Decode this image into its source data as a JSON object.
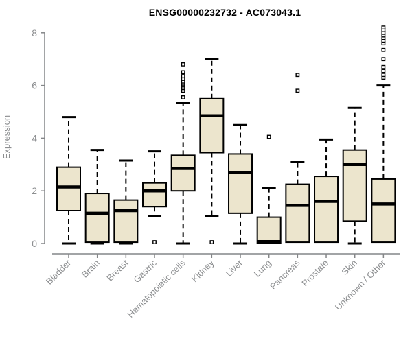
{
  "chart_data": {
    "type": "box",
    "title": "ENSG00000232732 - AC073043.1",
    "ylabel": "Expression",
    "xlabel": "",
    "ylim": [
      0,
      8
    ],
    "yticks": [
      "0",
      "2",
      "4",
      "6",
      "8"
    ],
    "grid": false,
    "legend": "none",
    "categories": [
      "Bladder",
      "Brain",
      "Breast",
      "Gastric",
      "Hematopoietic cells",
      "Kidney",
      "Liver",
      "Lung",
      "Pancreas",
      "Prostate",
      "Skin",
      "Unknown / Other"
    ],
    "boxes": [
      {
        "category": "Bladder",
        "low": 0.0,
        "q1": 1.25,
        "median": 2.15,
        "q3": 2.9,
        "high": 4.8,
        "outliers": []
      },
      {
        "category": "Brain",
        "low": 0.0,
        "q1": 0.05,
        "median": 1.15,
        "q3": 1.9,
        "high": 3.55,
        "outliers": []
      },
      {
        "category": "Breast",
        "low": 0.0,
        "q1": 0.05,
        "median": 1.25,
        "q3": 1.65,
        "high": 3.15,
        "outliers": []
      },
      {
        "category": "Gastric",
        "low": 1.05,
        "q1": 1.4,
        "median": 2.0,
        "q3": 2.3,
        "high": 3.5,
        "outliers": [
          0.05
        ]
      },
      {
        "category": "Hematopoietic cells",
        "low": 0.0,
        "q1": 2.0,
        "median": 2.85,
        "q3": 3.35,
        "high": 5.35,
        "outliers": [
          5.55,
          5.8,
          5.9,
          5.95,
          6.0,
          6.05,
          6.1,
          6.15,
          6.25,
          6.35,
          6.5,
          6.8
        ]
      },
      {
        "category": "Kidney",
        "low": 1.05,
        "q1": 3.45,
        "median": 4.85,
        "q3": 5.5,
        "high": 7.0,
        "outliers": [
          0.05
        ]
      },
      {
        "category": "Liver",
        "low": 0.0,
        "q1": 1.15,
        "median": 2.7,
        "q3": 3.4,
        "high": 4.5,
        "outliers": []
      },
      {
        "category": "Lung",
        "low": 0.0,
        "q1": 0.0,
        "median": 0.07,
        "q3": 1.0,
        "high": 2.1,
        "outliers": [
          4.05
        ]
      },
      {
        "category": "Pancreas",
        "low": 0.05,
        "q1": 0.05,
        "median": 1.45,
        "q3": 2.25,
        "high": 3.1,
        "outliers": [
          5.8,
          6.4
        ]
      },
      {
        "category": "Prostate",
        "low": 0.05,
        "q1": 0.05,
        "median": 1.6,
        "q3": 2.55,
        "high": 3.95,
        "outliers": []
      },
      {
        "category": "Skin",
        "low": 0.0,
        "q1": 0.85,
        "median": 3.0,
        "q3": 3.55,
        "high": 5.15,
        "outliers": []
      },
      {
        "category": "Unknown / Other",
        "low": 0.05,
        "q1": 0.05,
        "median": 1.5,
        "q3": 2.45,
        "high": 6.0,
        "outliers": [
          6.3,
          6.4,
          6.55,
          6.7,
          7.0,
          7.35,
          7.6,
          7.7,
          7.8,
          7.9,
          8.0,
          8.1,
          8.2
        ]
      }
    ]
  },
  "colors": {
    "box_fill": "#ECE5CD",
    "box_edge": "#000000",
    "median": "#000000",
    "whisker": "#000000",
    "outlier_edge": "#000000",
    "outlier_fill": "#ffffff",
    "axis": "#848688",
    "tick_label": "#8c8e90",
    "title": "#000000",
    "background": "#ffffff"
  }
}
